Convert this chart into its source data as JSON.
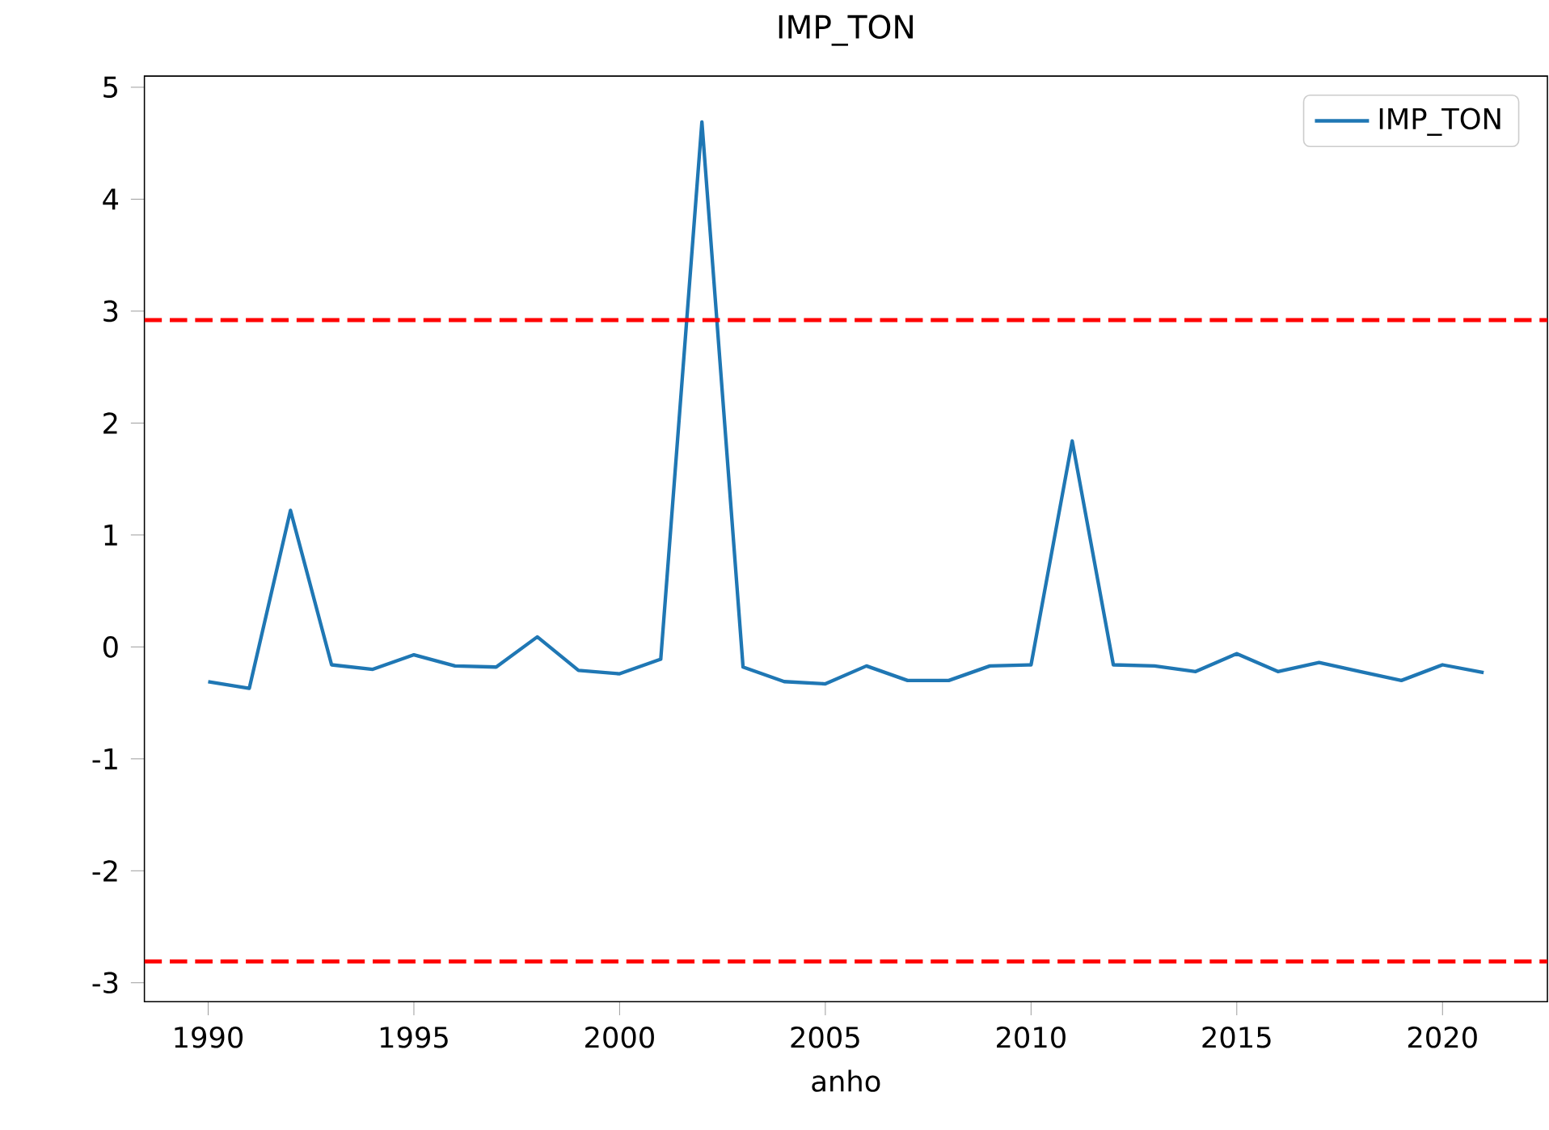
{
  "chart_data": {
    "type": "line",
    "title": "IMP_TON",
    "xlabel": "anho",
    "x": [
      1990,
      1991,
      1992,
      1993,
      1994,
      1995,
      1996,
      1997,
      1998,
      1999,
      2000,
      2001,
      2002,
      2003,
      2004,
      2005,
      2006,
      2007,
      2008,
      2009,
      2010,
      2011,
      2012,
      2013,
      2014,
      2015,
      2016,
      2017,
      2018,
      2019,
      2020,
      2021
    ],
    "series": [
      {
        "name": "IMP_TON",
        "color": "#1f77b4",
        "values": [
          -0.31,
          -0.37,
          1.22,
          -0.16,
          -0.2,
          -0.07,
          -0.17,
          -0.18,
          0.09,
          -0.21,
          -0.24,
          -0.11,
          4.69,
          -0.18,
          -0.31,
          -0.33,
          -0.17,
          -0.3,
          -0.3,
          -0.17,
          -0.16,
          1.84,
          -0.16,
          -0.17,
          -0.22,
          -0.06,
          -0.22,
          -0.14,
          -0.22,
          -0.3,
          -0.16,
          -0.23
        ]
      }
    ],
    "xlim": [
      1988.45,
      2022.55
    ],
    "ylim": [
      -3.17,
      5.1
    ],
    "xticks": [
      1990,
      1995,
      2000,
      2005,
      2010,
      2015,
      2020
    ],
    "yticks": [
      -3,
      -2,
      -1,
      0,
      1,
      2,
      3,
      4,
      5
    ],
    "ref_lines": [
      {
        "axis": "y",
        "value": 2.92,
        "color": "#ff0000",
        "line_style": "dashed"
      },
      {
        "axis": "y",
        "value": -2.81,
        "color": "#ff0000",
        "line_style": "dashed"
      }
    ],
    "legend": "top right",
    "grid": false,
    "marker": "none",
    "line_style": "solid"
  }
}
